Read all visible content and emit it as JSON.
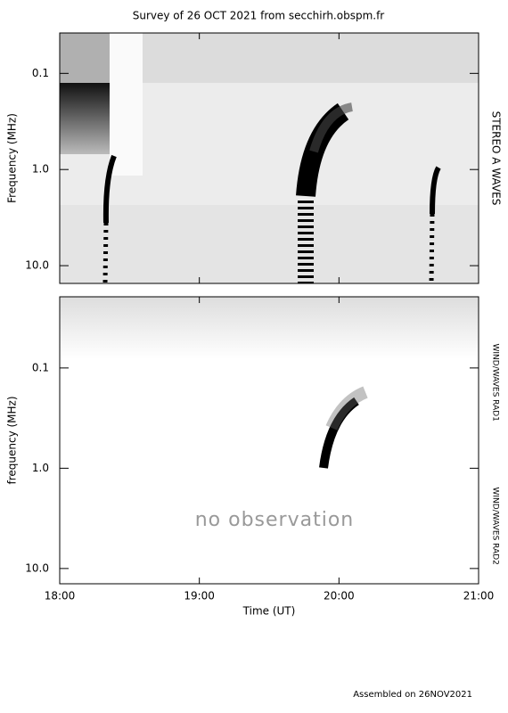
{
  "chart_data": [
    {
      "type": "spectrogram",
      "title": "Survey of 26 OCT 2021 from secchirh.obspm.fr",
      "ylabel": "Frequency (MHz)",
      "side_labels": [
        "STEREO A WAVES"
      ],
      "xlim": [
        18,
        21
      ],
      "xticks": [
        18,
        19,
        20,
        21
      ],
      "ylim": [
        0.038,
        15.3
      ],
      "log_scale": true,
      "y_inverted": true,
      "yticks": [
        0.1,
        {
          "value": 1,
          "label": "1.0"
        },
        {
          "value": 10,
          "label": "10.0"
        }
      ]
    },
    {
      "type": "spectrogram",
      "xlabel": "Time (UT)",
      "ylabel": "frequency (MHz)",
      "side_labels": [
        "WIND/WAVES RAD1",
        "WIND/WAVES RAD2"
      ],
      "annotation": "no observation",
      "xlim": [
        18,
        21
      ],
      "xticks": [
        {
          "value": 18,
          "label": "18:00"
        },
        {
          "value": 19,
          "label": "19:00"
        },
        {
          "value": 20,
          "label": "20:00"
        },
        {
          "value": 21,
          "label": "21:00"
        }
      ],
      "ylim": [
        0.0195,
        14.2
      ],
      "log_scale": true,
      "y_inverted": true,
      "yticks": [
        0.1,
        {
          "value": 1,
          "label": "1.0"
        },
        {
          "value": 10,
          "label": "10.0"
        }
      ]
    }
  ],
  "footer": "Assembled on 26NOV2021"
}
